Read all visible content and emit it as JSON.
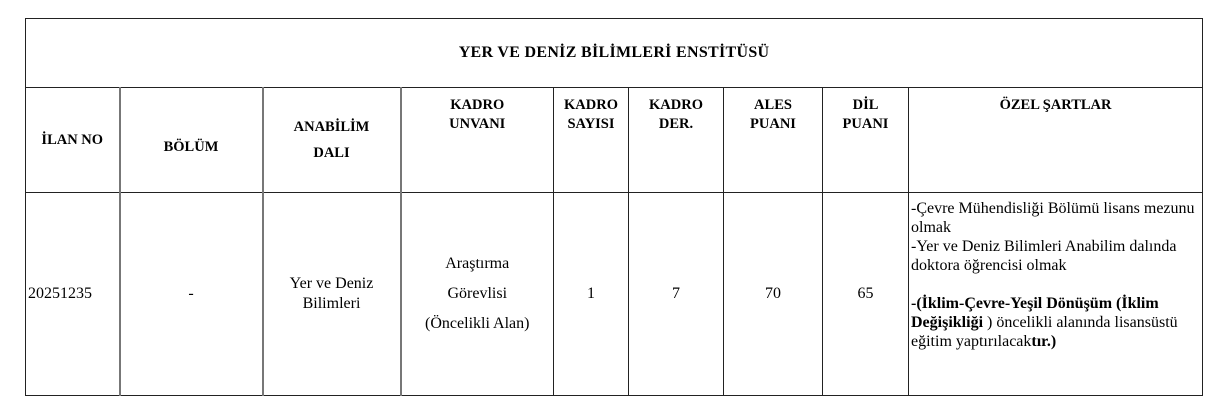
{
  "title": "YER VE DENİZ BİLİMLERİ ENSTİTÜSÜ",
  "headers": {
    "ilan_no": "İLAN NO",
    "bolum": "BÖLÜM",
    "anabilim_1": "ANABİLİM",
    "anabilim_2": "DALI",
    "kadro_unvani_1": "KADRO",
    "kadro_unvani_2": "UNVANI",
    "kadro_sayisi_1": "KADRO",
    "kadro_sayisi_2": "SAYISI",
    "kadro_der_1": "KADRO",
    "kadro_der_2": "DER.",
    "ales_1": "ALES",
    "ales_2": "PUANI",
    "dil_1": "DİL",
    "dil_2": "PUANI",
    "ozel": "ÖZEL ŞARTLAR"
  },
  "row": {
    "ilan_no": "20251235",
    "bolum": "-",
    "anabilim_1": "Yer ve Deniz",
    "anabilim_2": "Bilimleri",
    "unvan_1": "Araştırma",
    "unvan_2": "Görevlisi",
    "unvan_3": "(Öncelikli Alan)",
    "kadro_sayisi": "1",
    "kadro_der": "7",
    "ales": "70",
    "dil": "65",
    "ozel_line1": "-Çevre Mühendisliği Bölümü lisans mezunu olmak",
    "ozel_line2": "-Yer ve Deniz Bilimleri Anabilim dalında doktora öğrencisi olmak",
    "ozel_bold1": "-(İklim-Çevre-Yeşil Dönüşüm (İklim Değişikliği",
    "ozel_rest": " ) öncelikli alanında lisansüstü eğitim yaptırılacak",
    "ozel_bold2": "tır.)"
  }
}
